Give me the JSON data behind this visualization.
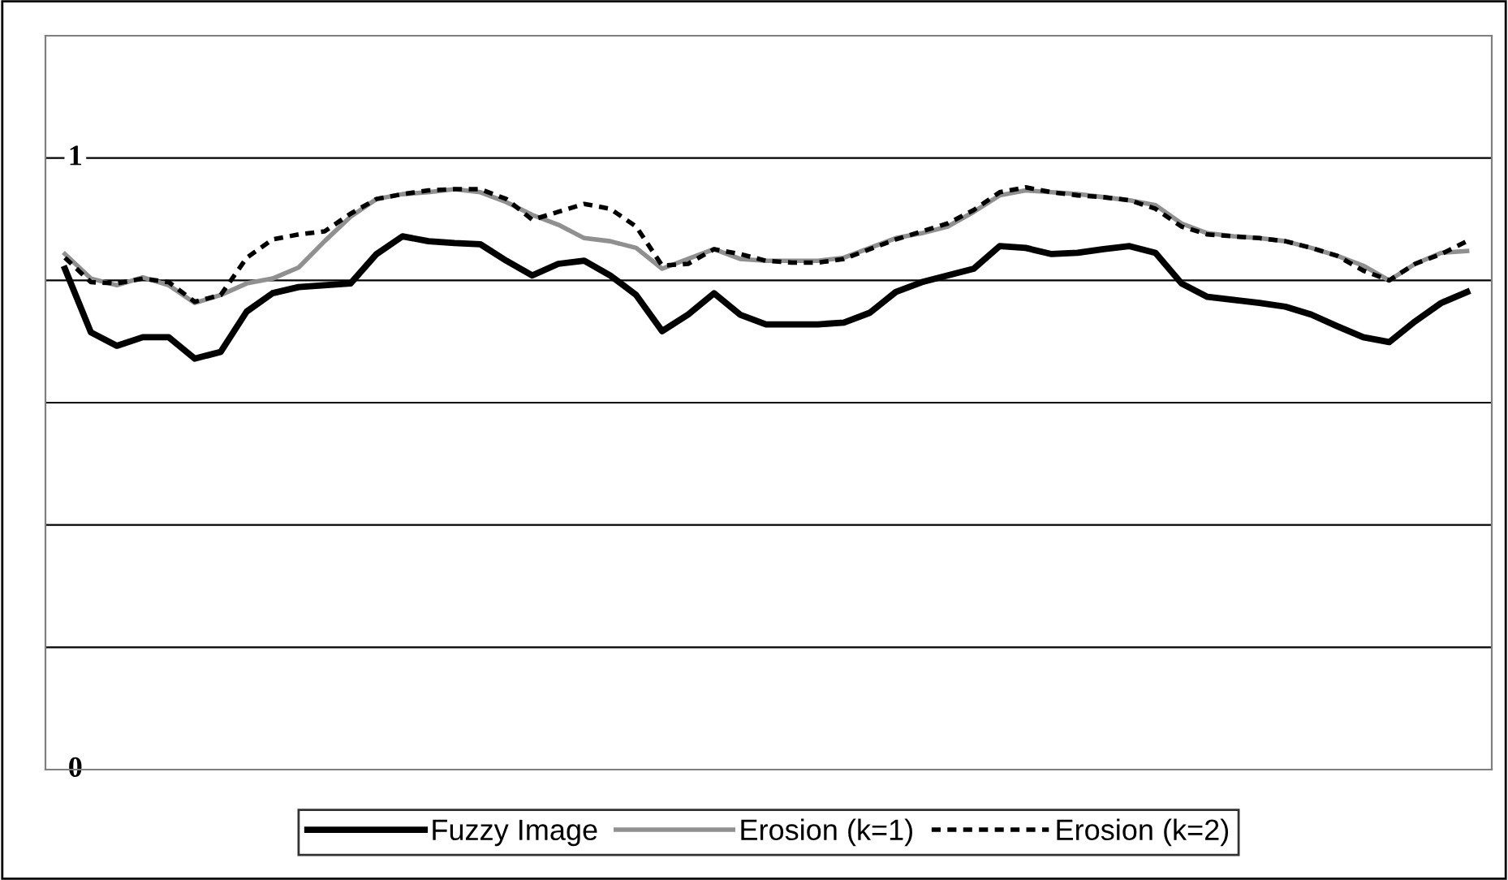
{
  "chart_data": {
    "type": "line",
    "ylim": [
      0,
      1.2
    ],
    "categories": [
      null,
      null,
      null,
      null,
      null,
      null,
      null,
      null,
      null,
      null,
      null,
      null,
      null,
      null,
      null,
      null,
      null,
      null,
      null,
      null,
      null,
      null,
      null,
      null,
      null,
      null,
      null,
      null,
      null,
      null,
      null,
      null,
      null,
      null,
      null,
      null,
      null,
      null,
      null,
      null,
      null,
      null,
      null,
      null,
      null,
      null,
      null,
      null,
      null,
      null,
      null,
      null,
      null,
      null,
      null
    ],
    "yticks": [
      {
        "value": 0,
        "label": "0"
      },
      {
        "value": 0.2,
        "label": null
      },
      {
        "value": 0.4,
        "label": null
      },
      {
        "value": 0.6,
        "label": null
      },
      {
        "value": 0.8,
        "label": null
      },
      {
        "value": 1,
        "label": "1"
      },
      {
        "value": 1.2,
        "label": null
      }
    ],
    "tick_labels": "y",
    "grid": "y",
    "legend": "bottom",
    "marker": "none",
    "series": [
      {
        "name": "Fuzzy Image",
        "color": "#000000",
        "line_style": "solid",
        "values": [
          0.819,
          0.715,
          0.693,
          0.707,
          0.707,
          0.672,
          0.683,
          0.749,
          0.779,
          0.789,
          0.792,
          0.795,
          0.843,
          0.872,
          0.864,
          0.861,
          0.859,
          0.832,
          0.808,
          0.827,
          0.832,
          0.808,
          0.776,
          0.717,
          0.744,
          0.779,
          0.744,
          0.728,
          0.728,
          0.728,
          0.731,
          0.747,
          0.781,
          0.797,
          0.808,
          0.819,
          0.856,
          0.853,
          0.843,
          0.845,
          0.851,
          0.856,
          0.845,
          0.795,
          0.773,
          0.768,
          0.763,
          0.757,
          0.744,
          0.725,
          0.707,
          0.699,
          0.733,
          0.763,
          0.781
        ]
      },
      {
        "name": "Erosion (k=1)",
        "color": "#909090",
        "line_style": "solid",
        "values": [
          0.843,
          0.803,
          0.792,
          0.805,
          0.792,
          0.763,
          0.776,
          0.795,
          0.803,
          0.821,
          0.864,
          0.904,
          0.933,
          0.941,
          0.944,
          0.949,
          0.944,
          0.928,
          0.907,
          0.891,
          0.869,
          0.864,
          0.853,
          0.819,
          0.835,
          0.851,
          0.835,
          0.832,
          0.832,
          0.832,
          0.837,
          0.853,
          0.869,
          0.877,
          0.888,
          0.912,
          0.939,
          0.947,
          0.944,
          0.941,
          0.936,
          0.931,
          0.923,
          0.893,
          0.877,
          0.872,
          0.869,
          0.864,
          0.853,
          0.84,
          0.824,
          0.8,
          0.827,
          0.845,
          0.848
        ]
      },
      {
        "name": "Erosion (k=2)",
        "color": "#000000",
        "line_style": "dotted",
        "values": [
          0.837,
          0.797,
          0.795,
          0.803,
          0.797,
          0.765,
          0.776,
          0.837,
          0.867,
          0.875,
          0.88,
          0.909,
          0.933,
          0.941,
          0.947,
          0.949,
          0.949,
          0.933,
          0.899,
          0.912,
          0.925,
          0.917,
          0.888,
          0.824,
          0.827,
          0.851,
          0.843,
          0.832,
          0.829,
          0.829,
          0.835,
          0.851,
          0.867,
          0.88,
          0.893,
          0.915,
          0.944,
          0.952,
          0.944,
          0.939,
          0.936,
          0.931,
          0.917,
          0.888,
          0.875,
          0.872,
          0.869,
          0.864,
          0.853,
          0.84,
          0.816,
          0.8,
          0.827,
          0.843,
          0.864
        ]
      }
    ]
  }
}
